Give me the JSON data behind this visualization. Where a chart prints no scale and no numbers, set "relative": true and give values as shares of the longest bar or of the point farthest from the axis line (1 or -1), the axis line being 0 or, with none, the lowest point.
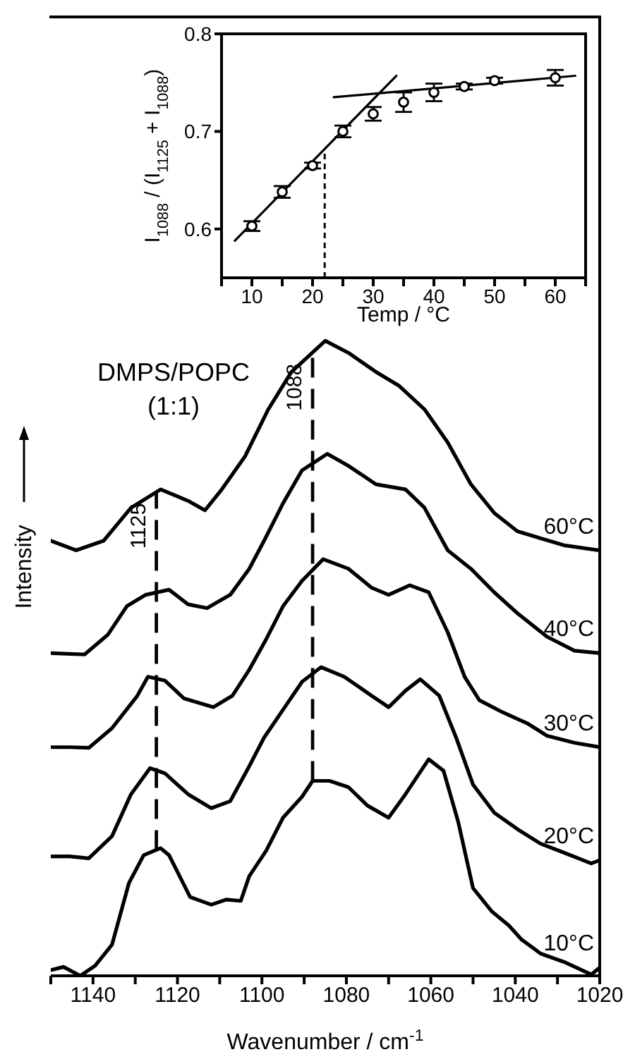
{
  "chart_data": [
    {
      "type": "line",
      "relative": true,
      "xlabel": "Wavenumber / cm$^{-1}$",
      "ylabel": "Intensity",
      "xlim": [
        1150,
        1020
      ],
      "xticks": [
        {
          "value": 1150,
          "label": null
        },
        1140,
        {
          "value": 1130,
          "label": null
        },
        1120,
        {
          "value": 1110,
          "label": null
        },
        1100,
        {
          "value": 1090,
          "label": null
        },
        1080,
        {
          "value": 1070,
          "label": null
        },
        1060,
        {
          "value": 1050,
          "label": null
        },
        1040,
        {
          "value": 1030,
          "label": null
        },
        1020
      ],
      "annotations": [
        "DMPS/POPC\n(1:1)"
      ],
      "ref_lines": [
        {
          "axis": "x",
          "value": 1125,
          "label": "1125",
          "line_style": "dashed"
        },
        {
          "axis": "x",
          "value": 1088,
          "label": "1088",
          "line_style": "dashed"
        }
      ],
      "series": [
        {
          "name": "60°C",
          "color": "#000000",
          "x": [
            1150,
            1144,
            1137.5,
            1131,
            1124,
            1117.5,
            1113.5,
            1109.5,
            1104,
            1098.5,
            1093,
            1085,
            1079.5,
            1073,
            1067.5,
            1061.5,
            1056,
            1050.5,
            1045,
            1039.5,
            1034,
            1028.5,
            1020
          ],
          "values": [
            0.685,
            0.67,
            0.685,
            0.737,
            0.766,
            0.748,
            0.733,
            0.766,
            0.818,
            0.892,
            0.951,
            1,
            0.981,
            0.951,
            0.929,
            0.892,
            0.84,
            0.774,
            0.729,
            0.7,
            0.689,
            0.678,
            0.67
          ]
        },
        {
          "name": "40°C",
          "color": "#000000",
          "x": [
            1150,
            1142,
            1136.5,
            1132,
            1127.5,
            1122,
            1117.5,
            1113,
            1107.5,
            1103,
            1099.5,
            1095,
            1090.5,
            1084.5,
            1079.5,
            1073,
            1066,
            1061.5,
            1056,
            1050.5,
            1045,
            1039.5,
            1032.5,
            1026,
            1020
          ],
          "values": [
            0.508,
            0.506,
            0.537,
            0.582,
            0.6,
            0.608,
            0.585,
            0.579,
            0.6,
            0.641,
            0.685,
            0.744,
            0.796,
            0.822,
            0.803,
            0.774,
            0.766,
            0.737,
            0.67,
            0.641,
            0.604,
            0.571,
            0.534,
            0.512,
            0.508
          ]
        },
        {
          "name": "30°C",
          "color": "#000000",
          "x": [
            1150,
            1145.5,
            1141,
            1135.5,
            1129.5,
            1127,
            1123,
            1118.5,
            1111.5,
            1107,
            1103,
            1099,
            1095,
            1090.5,
            1085.5,
            1079.5,
            1074,
            1070,
            1065,
            1060.5,
            1056,
            1052,
            1048.5,
            1043,
            1037,
            1032.5,
            1026,
            1020
          ],
          "values": [
            0.36,
            0.36,
            0.359,
            0.39,
            0.441,
            0.471,
            0.465,
            0.437,
            0.423,
            0.441,
            0.482,
            0.53,
            0.582,
            0.622,
            0.656,
            0.641,
            0.611,
            0.6,
            0.615,
            0.604,
            0.541,
            0.471,
            0.434,
            0.415,
            0.397,
            0.378,
            0.367,
            0.36
          ]
        },
        {
          "name": "20°C",
          "color": "#000000",
          "x": [
            1150,
            1145.5,
            1141,
            1135.5,
            1131,
            1126.5,
            1123,
            1117.5,
            1112,
            1107.5,
            1103,
            1099.5,
            1095,
            1090.5,
            1086,
            1080.5,
            1074,
            1070,
            1066,
            1062.5,
            1058,
            1054,
            1050,
            1045,
            1039.5,
            1034,
            1028.5,
            1022,
            1020
          ],
          "values": [
            0.188,
            0.188,
            0.185,
            0.22,
            0.286,
            0.327,
            0.319,
            0.286,
            0.264,
            0.275,
            0.33,
            0.375,
            0.419,
            0.463,
            0.486,
            0.471,
            0.441,
            0.423,
            0.449,
            0.467,
            0.441,
            0.375,
            0.301,
            0.257,
            0.231,
            0.208,
            0.194,
            0.177,
            0.182
          ]
        },
        {
          "name": "10°C",
          "color": "#000000",
          "x": [
            1150,
            1147,
            1143,
            1139.5,
            1135.5,
            1131.5,
            1128,
            1124,
            1122,
            1117,
            1112,
            1108.5,
            1105,
            1103,
            1099,
            1095,
            1090.5,
            1088,
            1084,
            1079.5,
            1075,
            1070,
            1066,
            1060.5,
            1057,
            1053.5,
            1050,
            1045.5,
            1041.5,
            1038.5,
            1034,
            1028.5,
            1022,
            1020
          ],
          "values": [
            0.009,
            0.014,
            0,
            0.016,
            0.049,
            0.146,
            0.19,
            0.201,
            0.19,
            0.124,
            0.112,
            0.12,
            0.118,
            0.157,
            0.197,
            0.249,
            0.282,
            0.307,
            0.307,
            0.297,
            0.268,
            0.249,
            0.286,
            0.341,
            0.323,
            0.242,
            0.138,
            0.101,
            0.079,
            0.057,
            0.035,
            0.022,
            0.002,
            0.013
          ]
        }
      ]
    },
    {
      "type": "scatter",
      "xlabel": "Temp / °C",
      "ylabel": "I$_{1088}$ / (I$_{1125}$ + I$_{1088}$)",
      "xlim": [
        5,
        65
      ],
      "xticks": [
        {
          "value": 5,
          "label": null
        },
        10,
        {
          "value": 15,
          "label": null
        },
        20,
        {
          "value": 25,
          "label": null
        },
        30,
        {
          "value": 35,
          "label": null
        },
        40,
        {
          "value": 45,
          "label": null
        },
        50,
        {
          "value": 55,
          "label": null
        },
        60,
        {
          "value": 65,
          "label": null
        }
      ],
      "ylim": [
        0.55,
        0.8
      ],
      "yticks": [
        0.6,
        0.7,
        0.8
      ],
      "marker": "circle",
      "ref_lines": [
        {
          "axis": "x",
          "value": 22,
          "line_style": "dashed"
        }
      ],
      "series": [
        {
          "type": "scatter",
          "color": "#000000",
          "x": [
            10,
            15,
            20,
            25,
            30,
            35,
            40,
            45,
            50,
            60
          ],
          "values": [
            0.603,
            0.638,
            0.665,
            0.7,
            0.718,
            0.73,
            0.74,
            0.746,
            0.752,
            0.755
          ],
          "errors": [
            0.005,
            0.006,
            0.003,
            0.006,
            0.007,
            0.01,
            0.009,
            0.003,
            0.003,
            0.008
          ]
        },
        {
          "type": "line",
          "marker": "none",
          "color": "#000000",
          "x": [
            7.2,
            33.8
          ],
          "values": [
            0.588,
            0.757
          ]
        },
        {
          "type": "line",
          "marker": "none",
          "color": "#000000",
          "x": [
            23.5,
            63.3
          ],
          "values": [
            0.735,
            0.757
          ]
        }
      ]
    }
  ]
}
